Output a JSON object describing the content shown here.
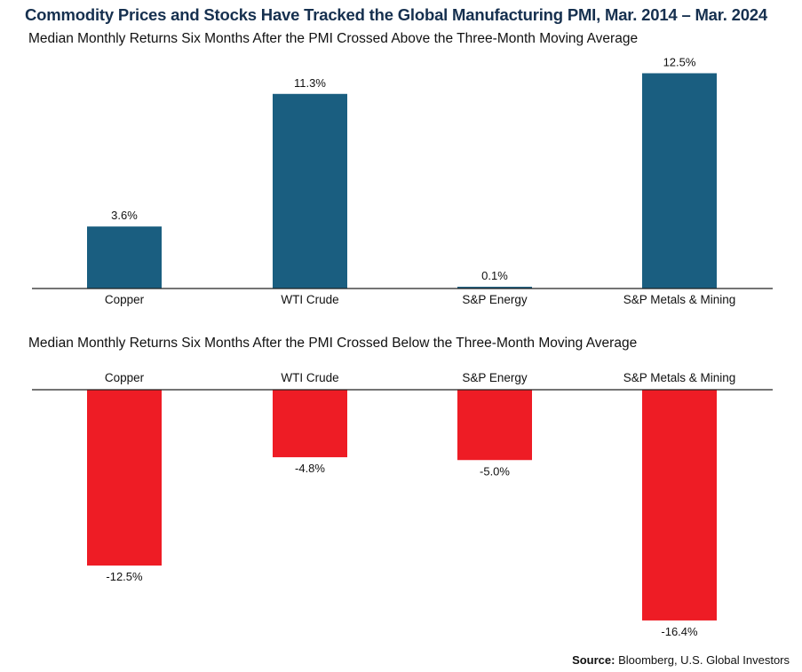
{
  "header": {
    "title": "Commodity Prices and Stocks Have Tracked the Global Manufacturing PMI, Mar. 2014 – Mar. 2024"
  },
  "chart_data": [
    {
      "type": "bar",
      "title": "Median Monthly Returns Six Months After the PMI Crossed Above the Three-Month Moving Average",
      "categories": [
        "Copper",
        "WTI Crude",
        "S&P Energy",
        "S&P Metals & Mining"
      ],
      "values": [
        3.6,
        11.3,
        0.1,
        12.5
      ],
      "labels": [
        "3.6%",
        "11.3%",
        "0.1%",
        "12.5%"
      ],
      "color": "#1a5e80",
      "xlabel": "",
      "ylabel": "",
      "ylim": [
        0,
        13
      ],
      "grid": false,
      "legend": "none"
    },
    {
      "type": "bar",
      "title": "Median Monthly Returns Six Months After the PMI Crossed Below the Three-Month Moving Average",
      "categories": [
        "Copper",
        "WTI Crude",
        "S&P Energy",
        "S&P Metals & Mining"
      ],
      "values": [
        -12.5,
        -4.8,
        -5.0,
        -16.4
      ],
      "labels": [
        "-12.5%",
        "-4.8%",
        "-5.0%",
        "-16.4%"
      ],
      "color": "#ee1c25",
      "xlabel": "",
      "ylabel": "",
      "ylim": [
        -17,
        0
      ],
      "grid": false,
      "legend": "none"
    }
  ],
  "footer": {
    "source_label": "Source:",
    "source_text": " Bloomberg, U.S. Global Investors"
  }
}
